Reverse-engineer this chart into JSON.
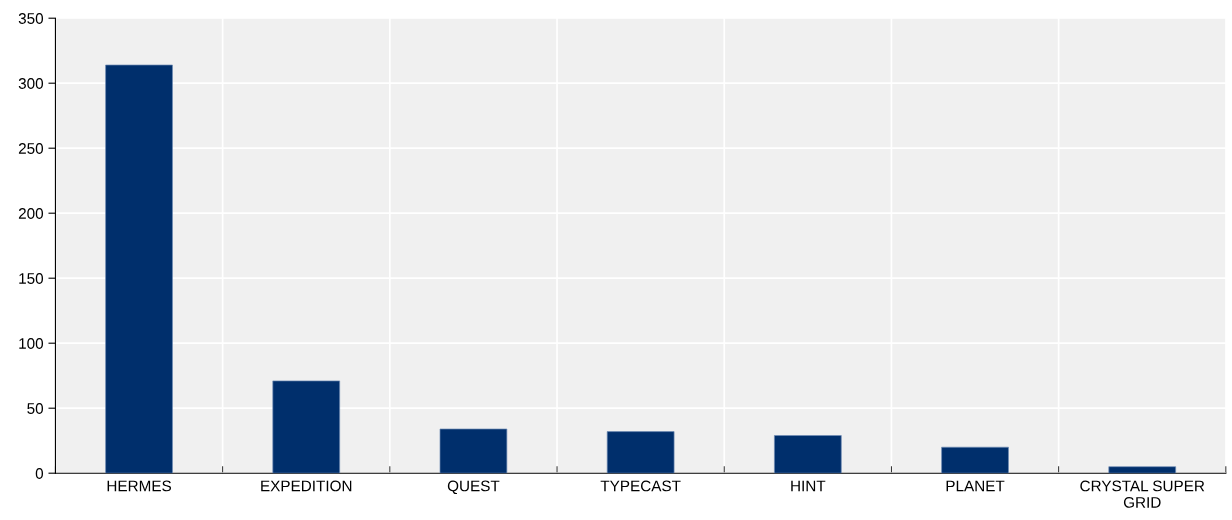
{
  "chart_data": {
    "type": "bar",
    "categories": [
      "HERMES",
      "EXPEDITION",
      "QUEST",
      "TYPECAST",
      "HINT",
      "PLANET",
      "CRYSTAL SUPER\nGRID"
    ],
    "values": [
      314,
      71,
      34,
      32,
      29,
      20,
      5
    ],
    "color": "#002f6c",
    "ylim": [
      0,
      350
    ],
    "yticks": [
      0,
      50,
      100,
      150,
      200,
      250,
      300,
      350
    ],
    "grid": true
  }
}
